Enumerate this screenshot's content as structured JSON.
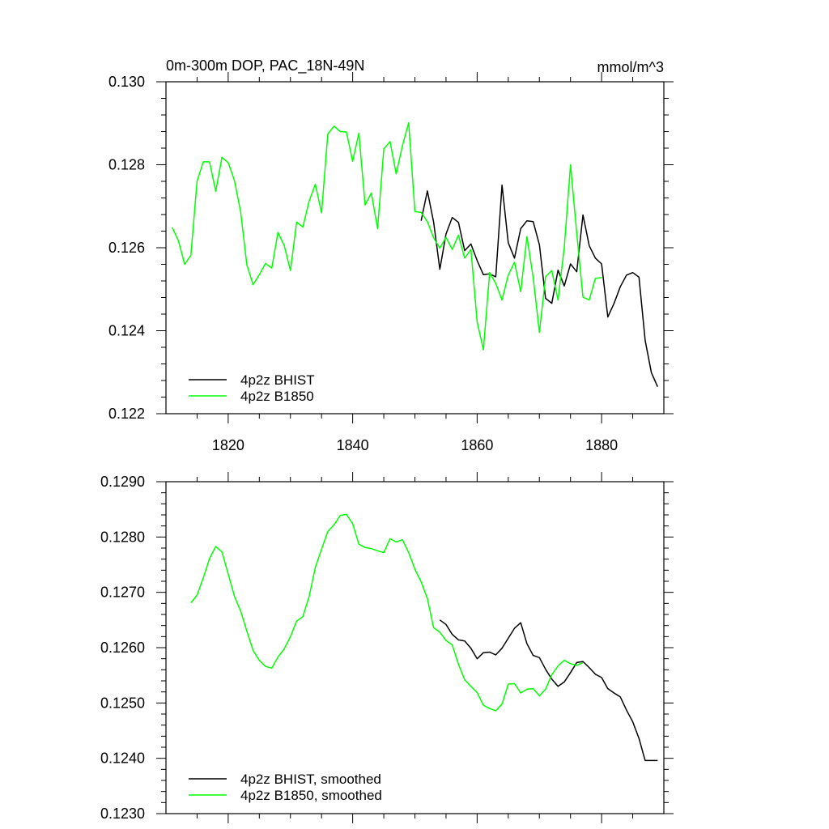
{
  "chart_data": [
    {
      "type": "line",
      "title": "0m-300m DOP, PAC_18N-49N",
      "units": "mmol/m^3",
      "xlabel": "",
      "ylabel": "",
      "xlim": [
        1810,
        1890
      ],
      "ylim": [
        0.122,
        0.13
      ],
      "xticks": [
        1820,
        1840,
        1860,
        1880
      ],
      "xtick_labels": [
        "1820",
        "1840",
        "1860",
        "1880"
      ],
      "yticks": [
        0.122,
        0.124,
        0.126,
        0.128,
        0.13
      ],
      "ytick_labels": [
        "0.122",
        "0.124",
        "0.126",
        "0.128",
        "0.130"
      ],
      "legend_position": "bottom-left",
      "grid": false,
      "series": [
        {
          "name": "4p2z BHIST",
          "color": "#000000",
          "x": [
            1851,
            1852,
            1853,
            1854,
            1855,
            1856,
            1857,
            1858,
            1859,
            1860,
            1861,
            1862,
            1863,
            1864,
            1865,
            1866,
            1867,
            1868,
            1869,
            1870,
            1871,
            1872,
            1873,
            1874,
            1875,
            1876,
            1877,
            1878,
            1879,
            1880,
            1881,
            1882,
            1883,
            1884,
            1885,
            1886,
            1887,
            1888,
            1889
          ],
          "y": [
            0.12665,
            0.12737,
            0.12662,
            0.12548,
            0.12633,
            0.12673,
            0.12661,
            0.12593,
            0.12609,
            0.12569,
            0.12535,
            0.12537,
            0.1253,
            0.12751,
            0.12612,
            0.12575,
            0.12646,
            0.12665,
            0.12663,
            0.12607,
            0.12478,
            0.12466,
            0.12546,
            0.12508,
            0.12561,
            0.12542,
            0.12679,
            0.12605,
            0.12575,
            0.12561,
            0.12433,
            0.12466,
            0.12506,
            0.12534,
            0.1254,
            0.12529,
            0.12377,
            0.12299,
            0.12265
          ]
        },
        {
          "name": "4p2z B1850",
          "color": "#00ff00",
          "x": [
            1811,
            1812,
            1813,
            1814,
            1815,
            1816,
            1817,
            1818,
            1819,
            1820,
            1821,
            1822,
            1823,
            1824,
            1825,
            1826,
            1827,
            1828,
            1829,
            1830,
            1831,
            1832,
            1833,
            1834,
            1835,
            1836,
            1837,
            1838,
            1839,
            1840,
            1841,
            1842,
            1843,
            1844,
            1845,
            1846,
            1847,
            1848,
            1849,
            1850,
            1851,
            1852,
            1853,
            1854,
            1855,
            1856,
            1857,
            1858,
            1859,
            1860,
            1861,
            1862,
            1863,
            1864,
            1865,
            1866,
            1867,
            1868,
            1869,
            1870,
            1871,
            1872,
            1873,
            1874,
            1875,
            1876,
            1877,
            1878,
            1879,
            1880
          ],
          "y": [
            0.12649,
            0.12617,
            0.1256,
            0.12582,
            0.1276,
            0.12807,
            0.12807,
            0.12736,
            0.12818,
            0.12805,
            0.12762,
            0.12686,
            0.12559,
            0.12511,
            0.12535,
            0.12562,
            0.12551,
            0.12637,
            0.12605,
            0.12545,
            0.12662,
            0.1265,
            0.12712,
            0.12753,
            0.12684,
            0.12874,
            0.12893,
            0.1288,
            0.12879,
            0.12808,
            0.12876,
            0.12703,
            0.12732,
            0.12646,
            0.12838,
            0.12856,
            0.12778,
            0.12846,
            0.12901,
            0.12687,
            0.12685,
            0.12663,
            0.12624,
            0.12599,
            0.12625,
            0.12596,
            0.1263,
            0.12575,
            0.12596,
            0.12421,
            0.12354,
            0.1254,
            0.12514,
            0.12474,
            0.12534,
            0.12565,
            0.12494,
            0.12627,
            0.12528,
            0.12396,
            0.1253,
            0.12545,
            0.12474,
            0.12601,
            0.128,
            0.12635,
            0.12481,
            0.12474,
            0.12526,
            0.12528
          ]
        }
      ]
    },
    {
      "type": "line",
      "title": "",
      "xlabel": "",
      "ylabel": "",
      "xlim": [
        1810,
        1890
      ],
      "ylim": [
        0.123,
        0.129
      ],
      "xticks": [
        1820,
        1840,
        1860,
        1880
      ],
      "yticks": [
        0.123,
        0.124,
        0.125,
        0.126,
        0.127,
        0.128,
        0.129
      ],
      "ytick_labels": [
        "0.1230",
        "0.1240",
        "0.1250",
        "0.1260",
        "0.1270",
        "0.1280",
        "0.1290"
      ],
      "legend_position": "bottom-left",
      "grid": false,
      "series": [
        {
          "name": "4p2z BHIST, smoothed",
          "color": "#000000",
          "x": [
            1854,
            1855,
            1856,
            1857,
            1858,
            1859,
            1860,
            1861,
            1862,
            1863,
            1864,
            1865,
            1866,
            1867,
            1868,
            1869,
            1870,
            1871,
            1872,
            1873,
            1874,
            1875,
            1876,
            1877,
            1878,
            1879,
            1880,
            1881,
            1882,
            1883,
            1884,
            1885,
            1886,
            1887,
            1888,
            1889
          ],
          "y": [
            0.1265,
            0.12642,
            0.12624,
            0.12614,
            0.12612,
            0.12599,
            0.1258,
            0.12591,
            0.12592,
            0.12587,
            0.12599,
            0.12617,
            0.12635,
            0.12645,
            0.12607,
            0.12586,
            0.12582,
            0.12561,
            0.12543,
            0.1253,
            0.12538,
            0.12555,
            0.12573,
            0.12575,
            0.12564,
            0.12552,
            0.12546,
            0.12526,
            0.12518,
            0.12511,
            0.12487,
            0.12466,
            0.12436,
            0.12396,
            0.12396,
            0.12396
          ]
        },
        {
          "name": "4p2z B1850, smoothed",
          "color": "#00ff00",
          "x": [
            1814,
            1815,
            1816,
            1817,
            1818,
            1819,
            1820,
            1821,
            1822,
            1823,
            1824,
            1825,
            1826,
            1827,
            1828,
            1829,
            1830,
            1831,
            1832,
            1833,
            1834,
            1835,
            1836,
            1837,
            1838,
            1839,
            1840,
            1841,
            1842,
            1843,
            1844,
            1845,
            1846,
            1847,
            1848,
            1849,
            1850,
            1851,
            1852,
            1853,
            1854,
            1855,
            1856,
            1857,
            1858,
            1859,
            1860,
            1861,
            1862,
            1863,
            1864,
            1865,
            1866,
            1867,
            1868,
            1869,
            1870,
            1871,
            1872,
            1873,
            1874,
            1875,
            1876,
            1877
          ],
          "y": [
            0.12681,
            0.12695,
            0.12726,
            0.12761,
            0.12783,
            0.12773,
            0.12733,
            0.12693,
            0.12666,
            0.1263,
            0.12595,
            0.12577,
            0.12566,
            0.12563,
            0.12583,
            0.12598,
            0.1262,
            0.12648,
            0.12656,
            0.12692,
            0.12745,
            0.12778,
            0.1281,
            0.12822,
            0.12839,
            0.12841,
            0.12824,
            0.12787,
            0.12781,
            0.12779,
            0.12775,
            0.12772,
            0.12797,
            0.12791,
            0.12795,
            0.12772,
            0.12742,
            0.12719,
            0.12689,
            0.12636,
            0.12628,
            0.12613,
            0.12605,
            0.1257,
            0.12542,
            0.1253,
            0.12519,
            0.12496,
            0.1249,
            0.12486,
            0.12498,
            0.12534,
            0.12535,
            0.12518,
            0.12525,
            0.12526,
            0.12513,
            0.12525,
            0.12551,
            0.12567,
            0.12577,
            0.12571,
            0.12568,
            0.12573
          ]
        }
      ]
    }
  ]
}
